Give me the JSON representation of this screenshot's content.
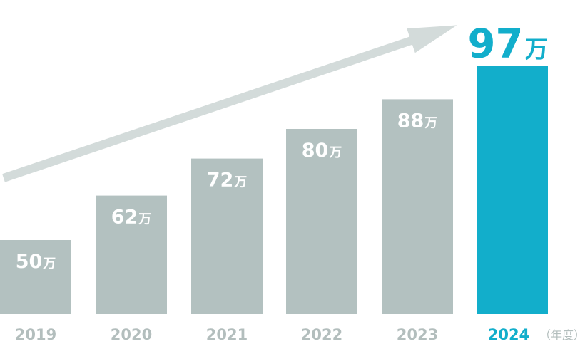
{
  "chart_data": {
    "type": "bar",
    "categories": [
      "2019",
      "2020",
      "2021",
      "2022",
      "2023",
      "2024"
    ],
    "values": [
      50,
      62,
      72,
      80,
      88,
      97
    ],
    "value_labels": [
      "50",
      "62",
      "72",
      "80",
      "88",
      "97"
    ],
    "value_unit": "万",
    "x_unit_note": "（年度）",
    "highlight_index": 5,
    "ylim": [
      30,
      100
    ],
    "grid": false,
    "legend": "none",
    "trend_arrow": true
  },
  "colors": {
    "bar": "#b3c1c0",
    "highlight_bar": "#12aecb",
    "arrow": "#d3dbda",
    "axis_label": "#b3bebd",
    "highlight_label": "#12aecb",
    "bar_text": "#ffffff"
  }
}
